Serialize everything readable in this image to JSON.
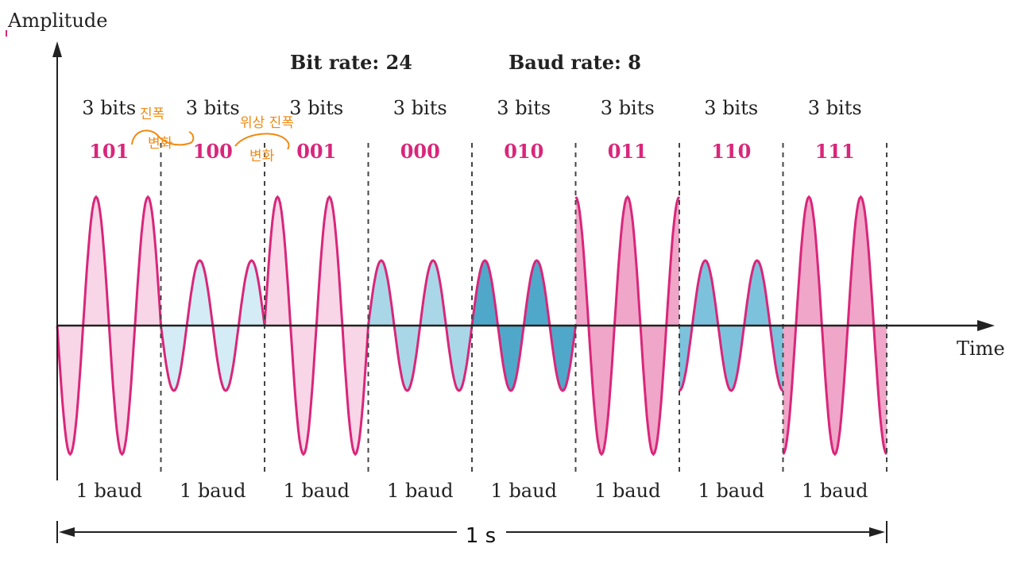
{
  "axes": {
    "y_label": "Amplitude",
    "x_label": "Time"
  },
  "header": {
    "bit_rate": "Bit rate: 24",
    "baud_rate": "Baud rate: 8"
  },
  "duration_label": "1 s",
  "colors": {
    "wave_line": "#d9267a",
    "axis": "#222222",
    "divider": "#444444",
    "bits_label": "#d9267a",
    "annotation": "#f08a12"
  },
  "segments": [
    {
      "bits_label": "3 bits",
      "bits": "101",
      "baud_label": "1 baud",
      "amplitude": "high",
      "phase_deg": 180,
      "fill": "#f9d6e7"
    },
    {
      "bits_label": "3 bits",
      "bits": "100",
      "baud_label": "1 baud",
      "amplitude": "low",
      "phase_deg": 180,
      "fill": "#d3ecf5"
    },
    {
      "bits_label": "3 bits",
      "bits": "001",
      "baud_label": "1 baud",
      "amplitude": "high",
      "phase_deg": 0,
      "fill": "#f9d6e7"
    },
    {
      "bits_label": "3 bits",
      "bits": "000",
      "baud_label": "1 baud",
      "amplitude": "low",
      "phase_deg": 0,
      "fill": "#a9d7e8"
    },
    {
      "bits_label": "3 bits",
      "bits": "010",
      "baud_label": "1 baud",
      "amplitude": "low",
      "phase_deg": 0,
      "fill": "#4fa8c9"
    },
    {
      "bits_label": "3 bits",
      "bits": "011",
      "baud_label": "1 baud",
      "amplitude": "high",
      "phase_deg": 90,
      "fill": "#f0a6c8"
    },
    {
      "bits_label": "3 bits",
      "bits": "110",
      "baud_label": "1 baud",
      "amplitude": "low",
      "phase_deg": 270,
      "fill": "#7dc2dc"
    },
    {
      "bits_label": "3 bits",
      "bits": "111",
      "baud_label": "1 baud",
      "amplitude": "high",
      "phase_deg": 270,
      "fill": "#f0a6c8"
    }
  ],
  "annotations": [
    {
      "top": "진폭",
      "bottom": "변화"
    },
    {
      "top": "위상 진폭",
      "bottom": "변화"
    }
  ]
}
